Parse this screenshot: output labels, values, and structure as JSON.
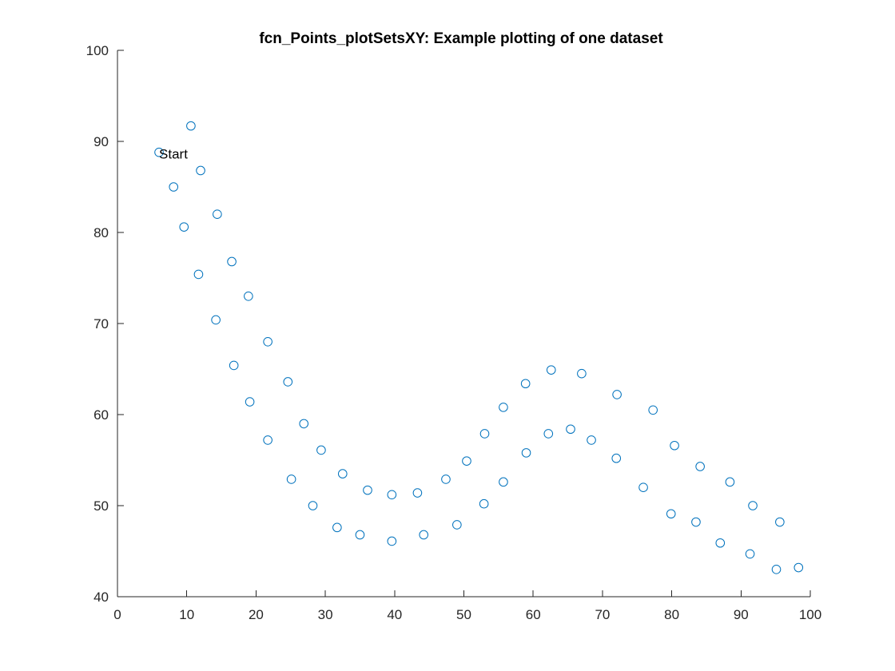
{
  "chart_data": {
    "type": "scatter",
    "title": "fcn_Points_plotSetsXY: Example plotting of one dataset",
    "xlabel": "",
    "ylabel": "",
    "xlim": [
      0,
      100
    ],
    "ylim": [
      40,
      100
    ],
    "x_ticks": [
      "0",
      "10",
      "20",
      "30",
      "40",
      "50",
      "60",
      "70",
      "80",
      "90",
      "100"
    ],
    "y_ticks": [
      "40",
      "50",
      "60",
      "70",
      "80",
      "90",
      "100"
    ],
    "grid": false,
    "marker": "circle-open",
    "color": "#0072BD",
    "annotations": [
      {
        "text": "Start",
        "x": 6,
        "y": 88.8
      }
    ],
    "series": [
      {
        "points": [
          [
            6.0,
            88.8
          ],
          [
            8.1,
            85.0
          ],
          [
            9.6,
            80.6
          ],
          [
            11.7,
            75.4
          ],
          [
            14.2,
            70.4
          ],
          [
            16.8,
            65.4
          ],
          [
            19.1,
            61.4
          ],
          [
            21.7,
            57.2
          ],
          [
            25.1,
            52.9
          ],
          [
            28.2,
            50.0
          ],
          [
            31.7,
            47.6
          ],
          [
            35.0,
            46.8
          ],
          [
            39.6,
            46.1
          ],
          [
            44.2,
            46.8
          ],
          [
            49.0,
            47.9
          ],
          [
            52.9,
            50.2
          ],
          [
            55.7,
            52.6
          ],
          [
            59.0,
            55.8
          ],
          [
            62.2,
            57.9
          ],
          [
            65.4,
            58.4
          ],
          [
            68.4,
            57.2
          ],
          [
            72.0,
            55.2
          ],
          [
            75.9,
            52.0
          ],
          [
            79.9,
            49.1
          ],
          [
            83.5,
            48.2
          ],
          [
            87.0,
            45.9
          ],
          [
            91.3,
            44.7
          ],
          [
            95.1,
            43.0
          ],
          [
            98.3,
            43.2
          ],
          [
            95.6,
            48.2
          ],
          [
            91.7,
            50.0
          ],
          [
            88.4,
            52.6
          ],
          [
            84.1,
            54.3
          ],
          [
            80.4,
            56.6
          ],
          [
            77.3,
            60.5
          ],
          [
            72.1,
            62.2
          ],
          [
            67.0,
            64.5
          ],
          [
            62.6,
            64.9
          ],
          [
            58.9,
            63.4
          ],
          [
            55.7,
            60.8
          ],
          [
            53.0,
            57.9
          ],
          [
            50.4,
            54.9
          ],
          [
            47.4,
            52.9
          ],
          [
            43.3,
            51.4
          ],
          [
            39.6,
            51.2
          ],
          [
            36.1,
            51.7
          ],
          [
            32.5,
            53.5
          ],
          [
            29.4,
            56.1
          ],
          [
            26.9,
            59.0
          ],
          [
            24.6,
            63.6
          ],
          [
            21.7,
            68.0
          ],
          [
            18.9,
            73.0
          ],
          [
            16.5,
            76.8
          ],
          [
            14.4,
            82.0
          ],
          [
            12.0,
            86.8
          ],
          [
            10.6,
            91.7
          ]
        ]
      }
    ]
  }
}
